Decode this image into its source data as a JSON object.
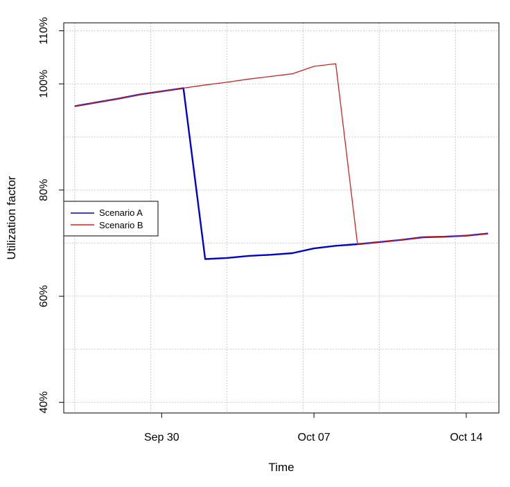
{
  "chart_data": {
    "type": "line",
    "xlabel": "Time",
    "ylabel": "Utilization factor",
    "x": [
      "2024-09-26",
      "2024-09-27",
      "2024-09-28",
      "2024-09-29",
      "2024-09-30",
      "2024-10-01",
      "2024-10-02",
      "2024-10-03",
      "2024-10-04",
      "2024-10-05",
      "2024-10-06",
      "2024-10-07",
      "2024-10-08",
      "2024-10-09",
      "2024-10-10",
      "2024-10-11",
      "2024-10-12",
      "2024-10-13",
      "2024-10-14",
      "2024-10-15"
    ],
    "xlim": [
      "2024-09-25T12:00",
      "2024-10-15T12:00"
    ],
    "x_ticks": [
      {
        "date": "2024-09-30",
        "label": "Sep 30"
      },
      {
        "date": "2024-10-07",
        "label": "Oct 07"
      },
      {
        "date": "2024-10-14",
        "label": "Oct 14"
      }
    ],
    "ylim": [
      0.38,
      1.115
    ],
    "y_ticks": [
      {
        "value": 0.4,
        "label": "40%"
      },
      {
        "value": 0.6,
        "label": "60%"
      },
      {
        "value": 0.8,
        "label": "80%"
      },
      {
        "value": 1.0,
        "label": "100%"
      },
      {
        "value": 1.1,
        "label": "110%"
      }
    ],
    "grid": true,
    "legend_position": "left",
    "series": [
      {
        "name": "Scenario A",
        "color": "#0000cc",
        "values": [
          0.958,
          0.965,
          0.972,
          0.98,
          0.986,
          0.992,
          0.67,
          0.672,
          0.676,
          0.678,
          0.681,
          0.69,
          0.695,
          0.698,
          0.702,
          0.706,
          0.711,
          0.712,
          0.714,
          0.718
        ]
      },
      {
        "name": "Scenario B",
        "color": "#cc2222",
        "values": [
          0.958,
          0.965,
          0.972,
          0.98,
          0.986,
          0.992,
          0.998,
          1.003,
          1.009,
          1.014,
          1.019,
          1.033,
          1.038,
          0.698,
          0.702,
          0.706,
          0.711,
          0.712,
          0.714,
          0.718
        ]
      }
    ]
  }
}
